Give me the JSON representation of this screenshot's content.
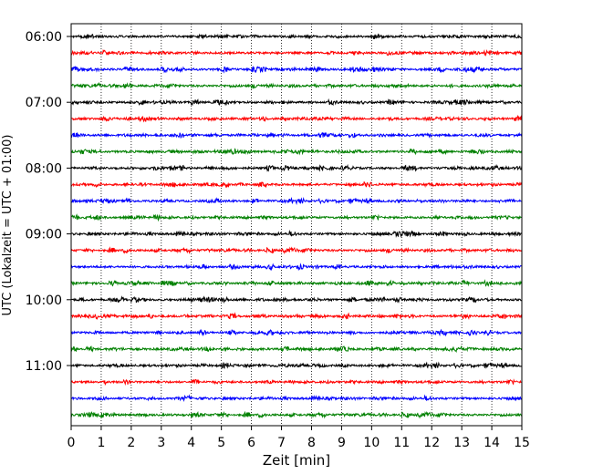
{
  "chart_data": {
    "type": "line",
    "xlabel": "Zeit  [min]",
    "ylabel": "UTC (Lokalzeit = UTC + 01:00)",
    "xlim": [
      0,
      15
    ],
    "x_ticks": [
      "0",
      "1",
      "2",
      "3",
      "4",
      "5",
      "6",
      "7",
      "8",
      "9",
      "10",
      "11",
      "12",
      "13",
      "14",
      "15"
    ],
    "y_ticks": [
      "06:00",
      "07:00",
      "08:00",
      "09:00",
      "10:00",
      "11:00"
    ],
    "grid": "vertical dotted",
    "trace_interval_min": 15,
    "start_time": "06:00",
    "trace_colors": [
      "#000000",
      "#ff0000",
      "#0000ff",
      "#008000"
    ],
    "series": [
      {
        "start": "06:00"
      },
      {
        "start": "06:15"
      },
      {
        "start": "06:30"
      },
      {
        "start": "06:45"
      },
      {
        "start": "07:00"
      },
      {
        "start": "07:15"
      },
      {
        "start": "07:30"
      },
      {
        "start": "07:45"
      },
      {
        "start": "08:00"
      },
      {
        "start": "08:15"
      },
      {
        "start": "08:30"
      },
      {
        "start": "08:45"
      },
      {
        "start": "09:00"
      },
      {
        "start": "09:15"
      },
      {
        "start": "09:30"
      },
      {
        "start": "09:45"
      },
      {
        "start": "10:00"
      },
      {
        "start": "10:15"
      },
      {
        "start": "10:30"
      },
      {
        "start": "10:45"
      },
      {
        "start": "11:00"
      },
      {
        "start": "11:15"
      },
      {
        "start": "11:30"
      },
      {
        "start": "11:45"
      }
    ]
  }
}
